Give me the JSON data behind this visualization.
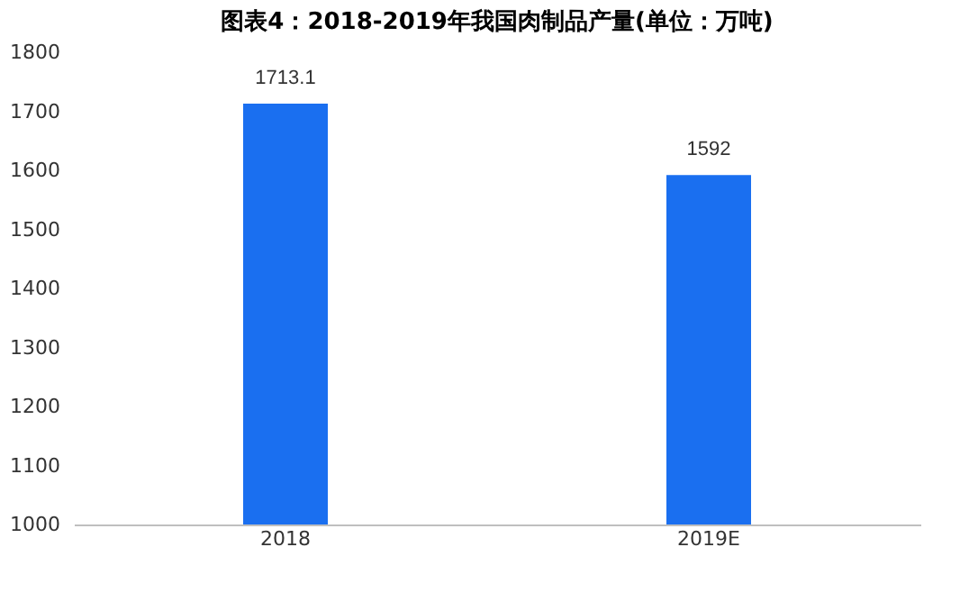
{
  "chart_data": {
    "type": "bar",
    "title": "图表4：2018-2019年我国肉制品产量(单位：万吨)",
    "categories": [
      "2018",
      "2019E"
    ],
    "values": [
      1713.1,
      1592
    ],
    "color": "#1a6ff0",
    "ylim": [
      1000,
      1800
    ],
    "yticks": [
      1000,
      1100,
      1200,
      1300,
      1400,
      1500,
      1600,
      1700,
      1800
    ],
    "grid": false,
    "data_labels": true
  }
}
